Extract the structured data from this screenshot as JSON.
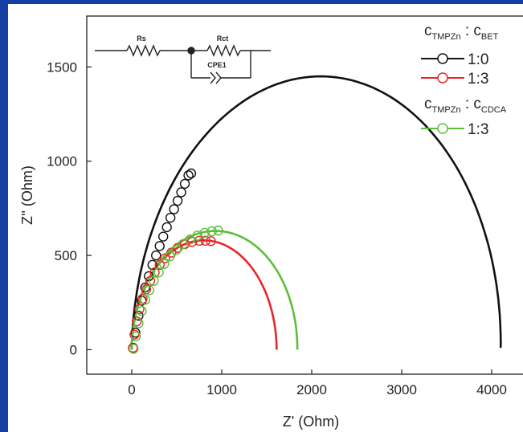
{
  "chart_data": {
    "type": "scatter",
    "xlabel": "Z' (Ohm)",
    "ylabel": "Z'' (Ohm)",
    "xlim": [
      -500,
      4500
    ],
    "ylim": [
      -130,
      1770
    ],
    "x_ticks": [
      0,
      1000,
      2000,
      3000,
      4000
    ],
    "y_ticks": [
      0,
      500,
      1000,
      1500
    ],
    "x_tick_labels": [
      "0",
      "1000",
      "2000",
      "3000",
      "4000"
    ],
    "y_tick_labels": [
      "0",
      "500",
      "1000",
      "1500"
    ],
    "grid": false,
    "legend_position": "top-right",
    "legend": {
      "group1_prefix": "c",
      "group1_sub1": "TMPZn",
      "group1_sep": " : ",
      "group1_prefix2": "c",
      "group1_sub2": "BET",
      "group2_prefix": "c",
      "group2_sub1": "TMPZn",
      "group2_sep": " : ",
      "group2_prefix2": "c",
      "group2_sub2": "CDCA"
    },
    "series": [
      {
        "name": "1:0",
        "group": 1,
        "color": "#111111",
        "fit_curve": {
          "x_start": 0,
          "x_end": 4100,
          "y_end": 10,
          "peak_x": 2100,
          "peak_y": 1450
        },
        "markers": [
          [
            15,
            10
          ],
          [
            40,
            90
          ],
          [
            75,
            180
          ],
          [
            110,
            260
          ],
          [
            150,
            330
          ],
          [
            190,
            390
          ],
          [
            230,
            450
          ],
          [
            270,
            500
          ],
          [
            310,
            550
          ],
          [
            350,
            600
          ],
          [
            390,
            650
          ],
          [
            430,
            700
          ],
          [
            470,
            745
          ],
          [
            510,
            790
          ],
          [
            550,
            835
          ],
          [
            590,
            880
          ],
          [
            630,
            925
          ],
          [
            660,
            935
          ]
        ]
      },
      {
        "name": "1:3",
        "group": 1,
        "color": "#e8262a",
        "fit_curve": {
          "x_start": 0,
          "x_end": 1610,
          "y_end": 0,
          "peak_x": 800,
          "peak_y": 580
        },
        "markers": [
          [
            12,
            8
          ],
          [
            30,
            80
          ],
          [
            55,
            150
          ],
          [
            85,
            215
          ],
          [
            120,
            270
          ],
          [
            160,
            320
          ],
          [
            205,
            365
          ],
          [
            255,
            410
          ],
          [
            310,
            450
          ],
          [
            370,
            485
          ],
          [
            440,
            515
          ],
          [
            510,
            540
          ],
          [
            590,
            560
          ],
          [
            670,
            572
          ],
          [
            750,
            578
          ],
          [
            820,
            578
          ],
          [
            880,
            576
          ]
        ]
      },
      {
        "name": "1:3",
        "group": 2,
        "color": "#5cbf3a",
        "fit_curve": {
          "x_start": 0,
          "x_end": 1840,
          "y_end": 0,
          "peak_x": 930,
          "peak_y": 630
        },
        "markers": [
          [
            20,
            5
          ],
          [
            45,
            70
          ],
          [
            75,
            140
          ],
          [
            110,
            205
          ],
          [
            150,
            265
          ],
          [
            195,
            315
          ],
          [
            245,
            365
          ],
          [
            300,
            410
          ],
          [
            360,
            455
          ],
          [
            425,
            495
          ],
          [
            495,
            530
          ],
          [
            570,
            560
          ],
          [
            650,
            585
          ],
          [
            730,
            605
          ],
          [
            810,
            620
          ],
          [
            890,
            628
          ],
          [
            960,
            632
          ]
        ]
      }
    ]
  },
  "circuit": {
    "rs_label": "Rs",
    "rct_label": "Rct",
    "cpe_label": "CPE1"
  },
  "colors": {
    "border": "#1440a6",
    "background": "#ffffff",
    "axis": "#222222"
  }
}
